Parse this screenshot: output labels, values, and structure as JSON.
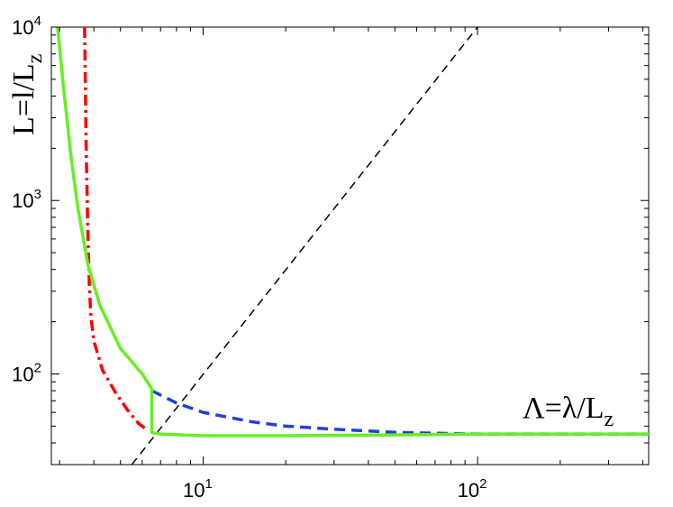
{
  "chart_data": {
    "type": "line",
    "title": "",
    "xlabel": {
      "main": "Λ=λ/L",
      "sub": "z"
    },
    "ylabel": {
      "main": "L=l/L",
      "sub": "z"
    },
    "xscale": "log",
    "yscale": "log",
    "xlim": [
      2.8,
      420
    ],
    "ylim": [
      30,
      10000
    ],
    "grid": false,
    "x_ticks": [
      {
        "value": 10,
        "base": "10",
        "exp": "1"
      },
      {
        "value": 100,
        "base": "10",
        "exp": "2"
      }
    ],
    "y_ticks": [
      {
        "value": 100,
        "base": "10",
        "exp": "2"
      },
      {
        "value": 1000,
        "base": "10",
        "exp": "3"
      },
      {
        "value": 10000,
        "base": "10",
        "exp": "4"
      }
    ],
    "series": [
      {
        "style": "black-dashed",
        "color": "#000000",
        "x": [
          5.5,
          100
        ],
        "y": [
          30,
          10000
        ]
      },
      {
        "style": "red-dashdot",
        "color": "#ff0000",
        "x": [
          3.7,
          3.75,
          3.8,
          3.85,
          3.9,
          4.0,
          4.3,
          4.8,
          5.3,
          5.8,
          6.2
        ],
        "y": [
          10000,
          2000,
          700,
          330,
          215,
          155,
          105,
          78,
          62,
          52,
          48
        ]
      },
      {
        "style": "blue-dashed",
        "color": "#1f3fe0",
        "x": [
          6.5,
          8,
          10,
          15,
          20,
          30,
          50,
          100,
          420
        ],
        "y": [
          80,
          68,
          60,
          53,
          50,
          48,
          46,
          45,
          45
        ]
      },
      {
        "style": "green-solid",
        "color": "#66ee22",
        "x": [
          2.95,
          3.1,
          3.3,
          3.5,
          3.8,
          4.2,
          5.0,
          6.0,
          6.5,
          6.5,
          7.0,
          10,
          20,
          50,
          100,
          420
        ],
        "y": [
          10000,
          4500,
          1800,
          900,
          430,
          250,
          140,
          100,
          82,
          46,
          45,
          44,
          44,
          44.5,
          45,
          45
        ]
      }
    ]
  }
}
